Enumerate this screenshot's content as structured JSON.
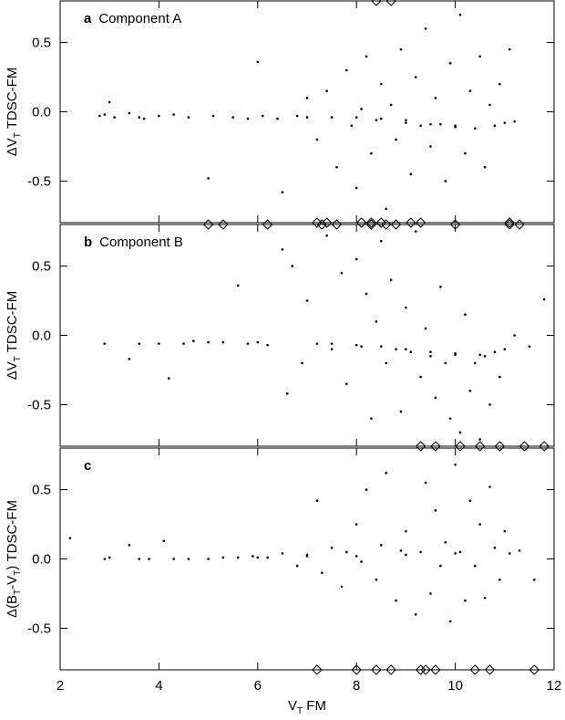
{
  "chart_data": [
    {
      "type": "scatter",
      "panel_letter": "a",
      "panel_title": "Component A",
      "ylabel": [
        "ΔV",
        "T",
        " TDSC-FM"
      ],
      "xlim": [
        2,
        12
      ],
      "xticks": [
        2,
        4,
        6,
        8,
        10,
        12
      ],
      "ylim": [
        -0.8,
        0.8
      ],
      "yticks": [
        -0.5,
        {
          "value": 0,
          "label": "0.0"
        },
        0.5
      ],
      "color": "#000000",
      "points": {
        "x": [
          2.8,
          2.9,
          3.0,
          3.1,
          3.4,
          3.6,
          3.7,
          4.0,
          4.3,
          4.6,
          5.0,
          5.1,
          5.5,
          5.8,
          6.0,
          6.1,
          6.4,
          6.5,
          6.8,
          7.0,
          7.2,
          7.4,
          7.5,
          7.6,
          7.8,
          7.9,
          8.0,
          8.1,
          8.2,
          8.3,
          8.4,
          8.5,
          8.6,
          8.7,
          8.8,
          8.9,
          9.0,
          9.1,
          9.2,
          9.3,
          9.4,
          9.5,
          9.6,
          9.7,
          9.8,
          9.9,
          10.0,
          10.1,
          10.2,
          10.3,
          10.4,
          10.5,
          10.6,
          10.7,
          10.8,
          10.9,
          11.0,
          11.1,
          11.2,
          9.0,
          8.5,
          10.0,
          9.5,
          7.0,
          8.0
        ],
        "y": [
          -0.03,
          -0.02,
          0.07,
          -0.04,
          -0.01,
          -0.04,
          -0.05,
          -0.03,
          -0.02,
          -0.04,
          -0.48,
          -0.03,
          -0.04,
          -0.05,
          0.36,
          -0.03,
          -0.05,
          -0.58,
          -0.03,
          0.1,
          -0.2,
          0.15,
          -0.04,
          -0.4,
          0.3,
          -0.1,
          -0.55,
          0.02,
          0.4,
          -0.3,
          -0.06,
          0.2,
          -0.7,
          0.05,
          -0.2,
          0.45,
          -0.08,
          -0.45,
          0.25,
          -0.1,
          0.6,
          -0.25,
          0.1,
          -0.09,
          -0.5,
          0.35,
          -0.1,
          0.7,
          -0.3,
          0.15,
          -0.12,
          0.4,
          -0.4,
          0.05,
          -0.1,
          0.2,
          -0.08,
          0.45,
          -0.07,
          -0.06,
          -0.05,
          -0.11,
          -0.09,
          -0.04,
          -0.04
        ]
      },
      "offscale": {
        "x": [
          8.4,
          8.7,
          7.2,
          7.4,
          8.1,
          8.3,
          8.5,
          9.1,
          9.3,
          11.1
        ],
        "y": [
          0.8,
          0.8,
          -0.8,
          -0.8,
          -0.8,
          -0.8,
          -0.8,
          -0.8,
          -0.8,
          -0.8
        ]
      }
    },
    {
      "type": "scatter",
      "panel_letter": "b",
      "panel_title": "Component B",
      "ylabel": [
        "ΔV",
        "T",
        " TDSC-FM"
      ],
      "xlim": [
        2,
        12
      ],
      "xticks": [
        2,
        4,
        6,
        8,
        10,
        12
      ],
      "ylim": [
        -0.8,
        0.8
      ],
      "yticks": [
        -0.5,
        {
          "value": 0,
          "label": "0.0"
        },
        0.5
      ],
      "color": "#000000",
      "points": {
        "x": [
          2.9,
          3.4,
          3.6,
          4.0,
          4.2,
          4.5,
          4.7,
          5.0,
          5.3,
          5.6,
          5.8,
          6.0,
          6.2,
          6.5,
          6.6,
          6.7,
          6.9,
          7.0,
          7.2,
          7.4,
          7.5,
          7.7,
          7.8,
          8.0,
          8.1,
          8.2,
          8.3,
          8.4,
          8.5,
          8.6,
          8.7,
          8.8,
          8.9,
          9.0,
          9.1,
          9.2,
          9.3,
          9.4,
          9.5,
          9.6,
          9.7,
          9.8,
          9.9,
          10.0,
          10.1,
          10.2,
          10.3,
          10.4,
          10.5,
          10.6,
          10.7,
          10.8,
          10.9,
          11.0,
          11.2,
          11.5,
          11.8,
          9.0,
          9.5,
          10.0,
          10.5,
          8.5,
          8.0,
          7.5
        ],
        "y": [
          -0.06,
          -0.17,
          -0.06,
          -0.06,
          -0.31,
          -0.06,
          -0.04,
          -0.05,
          -0.05,
          0.36,
          -0.06,
          -0.05,
          -0.07,
          0.62,
          -0.42,
          0.5,
          -0.2,
          0.25,
          -0.06,
          0.72,
          -0.1,
          0.45,
          -0.35,
          0.55,
          -0.08,
          0.3,
          -0.6,
          0.1,
          0.68,
          -0.2,
          0.4,
          -0.1,
          -0.55,
          0.2,
          -0.12,
          0.75,
          -0.3,
          0.05,
          -0.15,
          -0.45,
          0.35,
          -0.2,
          -0.6,
          -0.14,
          -0.7,
          0.15,
          -0.4,
          -0.2,
          -0.75,
          -0.15,
          -0.5,
          -0.12,
          -0.3,
          -0.1,
          0.0,
          -0.08,
          0.26,
          -0.1,
          -0.12,
          -0.13,
          -0.14,
          -0.08,
          -0.07,
          -0.06
        ]
      },
      "offscale": {
        "x": [
          5.0,
          5.3,
          6.2,
          7.3,
          7.6,
          8.3,
          8.6,
          8.8,
          10.0,
          11.1,
          11.3,
          9.3,
          9.6,
          10.1,
          10.5,
          10.9,
          11.4,
          11.8
        ],
        "y": [
          0.8,
          0.8,
          0.8,
          0.8,
          0.8,
          0.8,
          0.8,
          0.8,
          0.8,
          0.8,
          0.8,
          -0.8,
          -0.8,
          -0.8,
          -0.8,
          -0.8,
          -0.8,
          -0.8
        ]
      }
    },
    {
      "type": "scatter",
      "panel_letter": "c",
      "ylabel": [
        "Δ(B",
        "T",
        "-V",
        "T",
        ") TDSC-FM"
      ],
      "xlabel": [
        "V",
        "T",
        " FM"
      ],
      "xlim": [
        2,
        12
      ],
      "xticks": [
        2,
        4,
        6,
        8,
        10,
        12
      ],
      "ylim": [
        -0.8,
        0.8
      ],
      "yticks": [
        -0.5,
        {
          "value": 0,
          "label": "0.0"
        },
        0.5
      ],
      "color": "#000000",
      "points": {
        "x": [
          2.2,
          2.9,
          3.0,
          3.4,
          3.6,
          3.8,
          4.1,
          4.3,
          4.6,
          5.0,
          5.3,
          5.6,
          5.9,
          6.2,
          6.5,
          6.8,
          7.0,
          7.2,
          7.3,
          7.5,
          7.7,
          7.8,
          8.0,
          8.1,
          8.2,
          8.4,
          8.5,
          8.6,
          8.8,
          8.9,
          9.0,
          9.2,
          9.3,
          9.4,
          9.5,
          9.6,
          9.7,
          9.8,
          9.9,
          10.0,
          10.1,
          10.2,
          10.3,
          10.4,
          10.5,
          10.6,
          10.7,
          10.8,
          10.9,
          11.0,
          11.1,
          11.3,
          11.6,
          8.0,
          9.0,
          10.0,
          7.0,
          6.0
        ],
        "y": [
          0.15,
          0.0,
          0.01,
          0.1,
          0.0,
          0.0,
          0.13,
          0.0,
          0.0,
          0.0,
          0.01,
          0.01,
          0.02,
          0.01,
          0.04,
          -0.05,
          0.03,
          0.42,
          -0.1,
          0.08,
          -0.2,
          0.05,
          0.25,
          -0.02,
          0.5,
          -0.15,
          0.1,
          0.62,
          -0.3,
          0.06,
          0.2,
          -0.4,
          0.05,
          0.55,
          -0.25,
          0.35,
          -0.05,
          0.12,
          -0.45,
          0.68,
          0.05,
          -0.3,
          0.42,
          -0.05,
          0.25,
          -0.28,
          0.52,
          0.08,
          -0.15,
          0.2,
          0.04,
          0.06,
          -0.15,
          0.02,
          0.03,
          0.04,
          0.02,
          0.01
        ]
      },
      "offscale": {
        "x": [
          7.2,
          8.0,
          8.4,
          8.7,
          9.3,
          9.4,
          9.6,
          10.4,
          10.7,
          11.6
        ],
        "y": [
          -0.8,
          -0.8,
          -0.8,
          -0.8,
          -0.8,
          -0.8,
          -0.8,
          -0.8,
          -0.8,
          -0.8
        ]
      }
    }
  ]
}
